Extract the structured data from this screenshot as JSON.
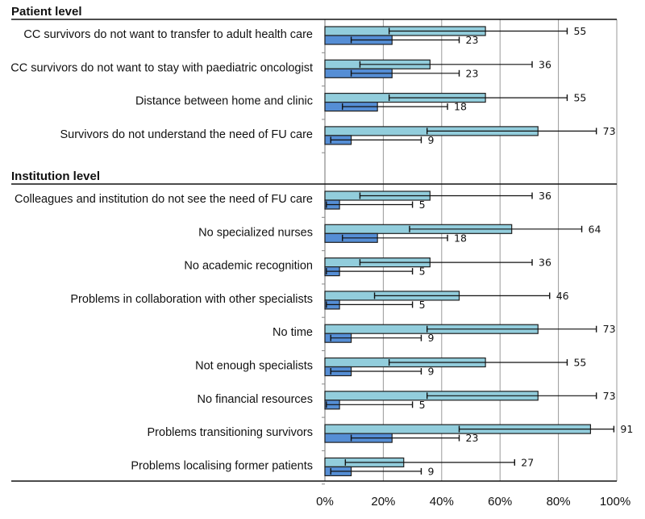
{
  "chart_data": {
    "type": "bar",
    "orientation": "horizontal",
    "title": "",
    "xlabel": "",
    "ylabel": "",
    "xlim": [
      0,
      100
    ],
    "x_ticks": [
      "0%",
      "20%",
      "40%",
      "60%",
      "80%",
      "100%"
    ],
    "grid": true,
    "legend": null,
    "colors": {
      "series_a": "#92CDDC",
      "series_b": "#558ED5",
      "outline": "#1F1F1F",
      "grid": "#999999"
    },
    "sections": [
      {
        "label": "Patient level",
        "categories": [
          {
            "label": "CC survivors do not want to transfer to adult health care",
            "a": 55,
            "a_err": [
              22,
              83
            ],
            "b": 23,
            "b_err": [
              9,
              46
            ]
          },
          {
            "label": "CC survivors do not want to stay with paediatric oncologist",
            "a": 36,
            "a_err": [
              12,
              71
            ],
            "b": 23,
            "b_err": [
              9,
              46
            ]
          },
          {
            "label": "Distance between home and clinic",
            "a": 55,
            "a_err": [
              22,
              83
            ],
            "b": 18,
            "b_err": [
              6,
              42
            ]
          },
          {
            "label": "Survivors do not understand the need of FU care",
            "a": 73,
            "a_err": [
              35,
              93
            ],
            "b": 9,
            "b_err": [
              2,
              33
            ]
          }
        ]
      },
      {
        "label": "Institution level",
        "categories": [
          {
            "label": "Colleagues and institution do not see the need of FU care",
            "a": 36,
            "a_err": [
              12,
              71
            ],
            "b": 5,
            "b_err": [
              0.5,
              30
            ]
          },
          {
            "label": "No specialized nurses",
            "a": 64,
            "a_err": [
              29,
              88
            ],
            "b": 18,
            "b_err": [
              6,
              42
            ]
          },
          {
            "label": "No academic recognition",
            "a": 36,
            "a_err": [
              12,
              71
            ],
            "b": 5,
            "b_err": [
              0.5,
              30
            ]
          },
          {
            "label": "Problems in collaboration with other specialists",
            "a": 46,
            "a_err": [
              17,
              77
            ],
            "b": 5,
            "b_err": [
              0.5,
              30
            ]
          },
          {
            "label": "No time",
            "a": 73,
            "a_err": [
              35,
              93
            ],
            "b": 9,
            "b_err": [
              2,
              33
            ]
          },
          {
            "label": "Not enough specialists",
            "a": 55,
            "a_err": [
              22,
              83
            ],
            "b": 9,
            "b_err": [
              2,
              33
            ]
          },
          {
            "label": "No financial resources",
            "a": 73,
            "a_err": [
              35,
              93
            ],
            "b": 5,
            "b_err": [
              0.5,
              30
            ]
          },
          {
            "label": "Problems transitioning survivors",
            "a": 91,
            "a_err": [
              46,
              99
            ],
            "b": 23,
            "b_err": [
              9,
              46
            ]
          },
          {
            "label": "Problems localising former patients",
            "a": 27,
            "a_err": [
              7,
              65
            ],
            "b": 9,
            "b_err": [
              2,
              33
            ]
          }
        ]
      }
    ]
  }
}
